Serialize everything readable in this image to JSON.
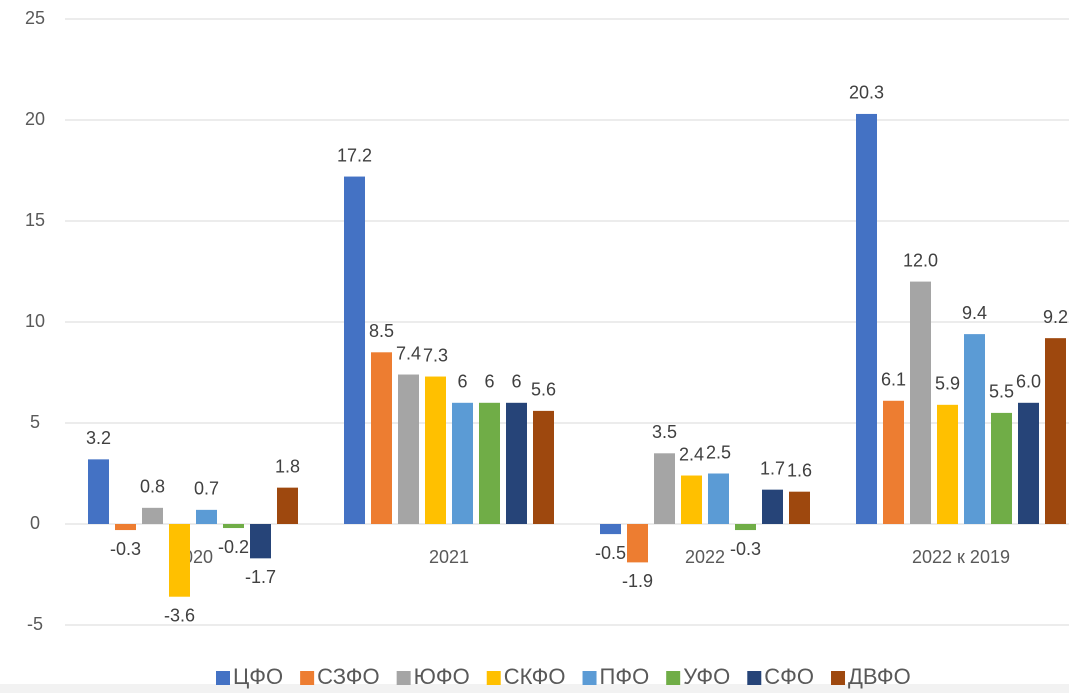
{
  "chart_data": {
    "type": "bar",
    "categories": [
      "2020",
      "2021",
      "2022",
      "2022 к 2019"
    ],
    "series": [
      {
        "name": "ЦФО",
        "color": "#4472c4",
        "values": [
          3.2,
          17.2,
          -0.5,
          20.3
        ],
        "value_labels": [
          "3.2",
          "17.2",
          "-0.5",
          "20.3"
        ]
      },
      {
        "name": "СЗФО",
        "color": "#ed7d31",
        "values": [
          -0.3,
          8.5,
          -1.9,
          6.1
        ],
        "value_labels": [
          "-0.3",
          "8.5",
          "-1.9",
          "6.1"
        ]
      },
      {
        "name": "ЮФО",
        "color": "#a5a5a5",
        "values": [
          0.8,
          7.4,
          3.5,
          12.0
        ],
        "value_labels": [
          "0.8",
          "7.4",
          "3.5",
          "12.0"
        ]
      },
      {
        "name": "СКФО",
        "color": "#ffc000",
        "values": [
          -3.6,
          7.3,
          2.4,
          5.9
        ],
        "value_labels": [
          "-3.6",
          "7.3",
          "2.4",
          "5.9"
        ]
      },
      {
        "name": "ПФО",
        "color": "#5b9bd5",
        "values": [
          0.7,
          6,
          2.5,
          9.4
        ],
        "value_labels": [
          "0.7",
          "6",
          "2.5",
          "9.4"
        ]
      },
      {
        "name": "УФО",
        "color": "#70ad47",
        "values": [
          -0.2,
          6,
          -0.3,
          5.5
        ],
        "value_labels": [
          "-0.2",
          "6",
          "-0.3",
          "5.5"
        ]
      },
      {
        "name": "СФО",
        "color": "#264478",
        "values": [
          -1.7,
          6,
          1.7,
          6.0
        ],
        "value_labels": [
          "-1.7",
          "6",
          "1.7",
          "6.0"
        ]
      },
      {
        "name": "ДВФО",
        "color": "#9e480e",
        "values": [
          1.8,
          5.6,
          1.6,
          9.2
        ],
        "value_labels": [
          "1.8",
          "5.6",
          "1.6",
          "9.2"
        ]
      }
    ],
    "ylim": [
      -5,
      25
    ],
    "yticks": [
      -5,
      0,
      5,
      10,
      15,
      20,
      25
    ],
    "grid": true,
    "legend": "bottom"
  }
}
